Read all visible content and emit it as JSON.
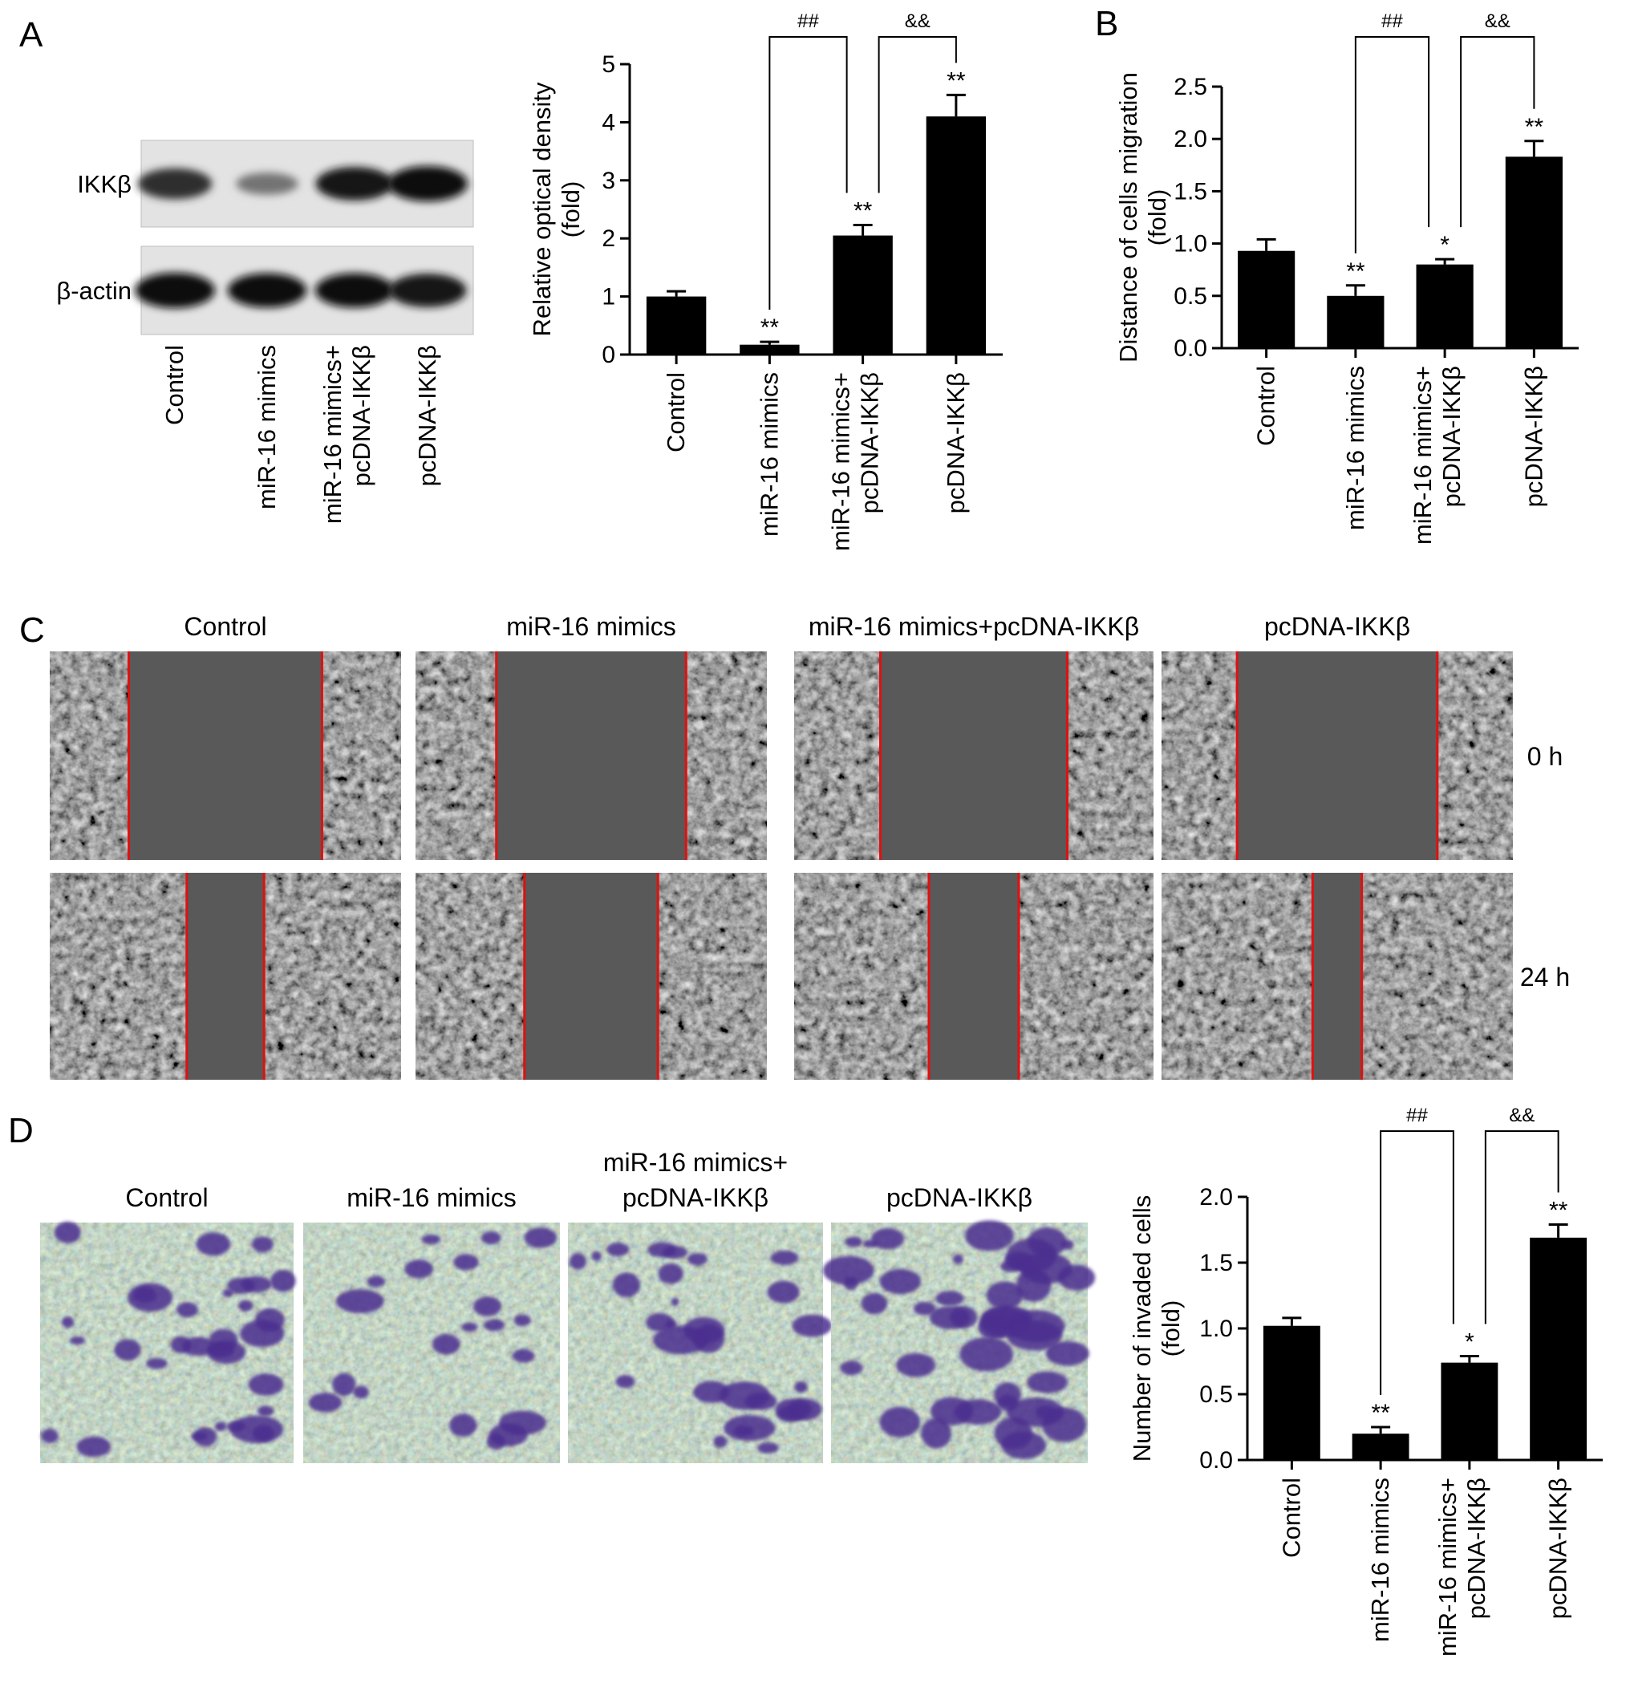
{
  "panel_letters": {
    "a": "A",
    "b": "B",
    "c": "C",
    "d": "D"
  },
  "groups": [
    "Control",
    "miR-16 mimics",
    "miR-16 mimics+ pcDNA-IKKβ",
    "pcDNA-IKKβ"
  ],
  "group_lines": [
    [
      "Control"
    ],
    [
      "miR-16 mimics"
    ],
    [
      "miR-16 mimics+",
      "pcDNA-IKKβ"
    ],
    [
      "pcDNA-IKKβ"
    ]
  ],
  "western": {
    "rows": [
      {
        "label": "IKKβ",
        "intensities": [
          0.75,
          0.25,
          0.9,
          1.0
        ]
      },
      {
        "label": "β-actin",
        "intensities": [
          1.0,
          0.95,
          0.95,
          0.9
        ]
      }
    ]
  },
  "wound": {
    "column_titles": [
      "Control",
      "miR-16 mimics",
      "miR-16 mimics+pcDNA-IKKβ",
      "pcDNA-IKKβ"
    ],
    "time_labels": [
      "0 h",
      "24 h"
    ],
    "gap_fraction": [
      [
        0.55,
        0.54,
        0.52,
        0.57
      ],
      [
        0.22,
        0.38,
        0.25,
        0.14
      ]
    ]
  },
  "transwell": {
    "titles": [
      [
        "Control"
      ],
      [
        "miR-16 mimics"
      ],
      [
        "miR-16 mimics+",
        "pcDNA-IKKβ"
      ],
      [
        "pcDNA-IKKβ"
      ]
    ],
    "stain_density": [
      0.55,
      0.25,
      0.5,
      0.85
    ]
  },
  "chart_data": [
    {
      "type": "bar",
      "panel": "A",
      "categories": [
        "Control",
        "miR-16 mimics",
        "miR-16 mimics+ pcDNA-IKKβ",
        "pcDNA-IKKβ"
      ],
      "values": [
        1.0,
        0.17,
        2.05,
        4.1
      ],
      "errors": [
        0.09,
        0.05,
        0.18,
        0.37
      ],
      "annotations": [
        "",
        "**",
        "**",
        "**"
      ],
      "brackets": [
        {
          "from": 1,
          "to": 2,
          "label": "##"
        },
        {
          "from": 2,
          "to": 3,
          "label": "&&"
        }
      ],
      "ylabel": [
        "Relative optical density",
        "(fold)"
      ],
      "ylim": [
        0,
        5
      ],
      "yticks": [
        "0",
        "1",
        "2",
        "3",
        "4",
        "5"
      ]
    },
    {
      "type": "bar",
      "panel": "B",
      "categories": [
        "Control",
        "miR-16 mimics",
        "miR-16 mimics+ pcDNA-IKKβ",
        "pcDNA-IKKβ"
      ],
      "values": [
        0.93,
        0.5,
        0.8,
        1.83
      ],
      "errors": [
        0.11,
        0.1,
        0.05,
        0.15
      ],
      "annotations": [
        "",
        "**",
        "*",
        "**"
      ],
      "brackets": [
        {
          "from": 1,
          "to": 2,
          "label": "##"
        },
        {
          "from": 2,
          "to": 3,
          "label": "&&"
        }
      ],
      "ylabel": [
        "Distance of cells migration",
        "(fold)"
      ],
      "ylim": [
        0,
        2.5
      ],
      "yticks": [
        "0.0",
        "0.5",
        "1.0",
        "1.5",
        "2.0",
        "2.5"
      ]
    },
    {
      "type": "bar",
      "panel": "D",
      "categories": [
        "Control",
        "miR-16 mimics",
        "miR-16 mimics+ pcDNA-IKKβ",
        "pcDNA-IKKβ"
      ],
      "values": [
        1.02,
        0.2,
        0.74,
        1.69
      ],
      "errors": [
        0.06,
        0.05,
        0.05,
        0.1
      ],
      "annotations": [
        "",
        "**",
        "*",
        "**"
      ],
      "brackets": [
        {
          "from": 1,
          "to": 2,
          "label": "##"
        },
        {
          "from": 2,
          "to": 3,
          "label": "&&"
        }
      ],
      "ylabel": [
        "Number of invaded cells",
        "(fold)"
      ],
      "ylim": [
        0,
        2.0
      ],
      "yticks": [
        "0.0",
        "0.5",
        "1.0",
        "1.5",
        "2.0"
      ]
    }
  ]
}
